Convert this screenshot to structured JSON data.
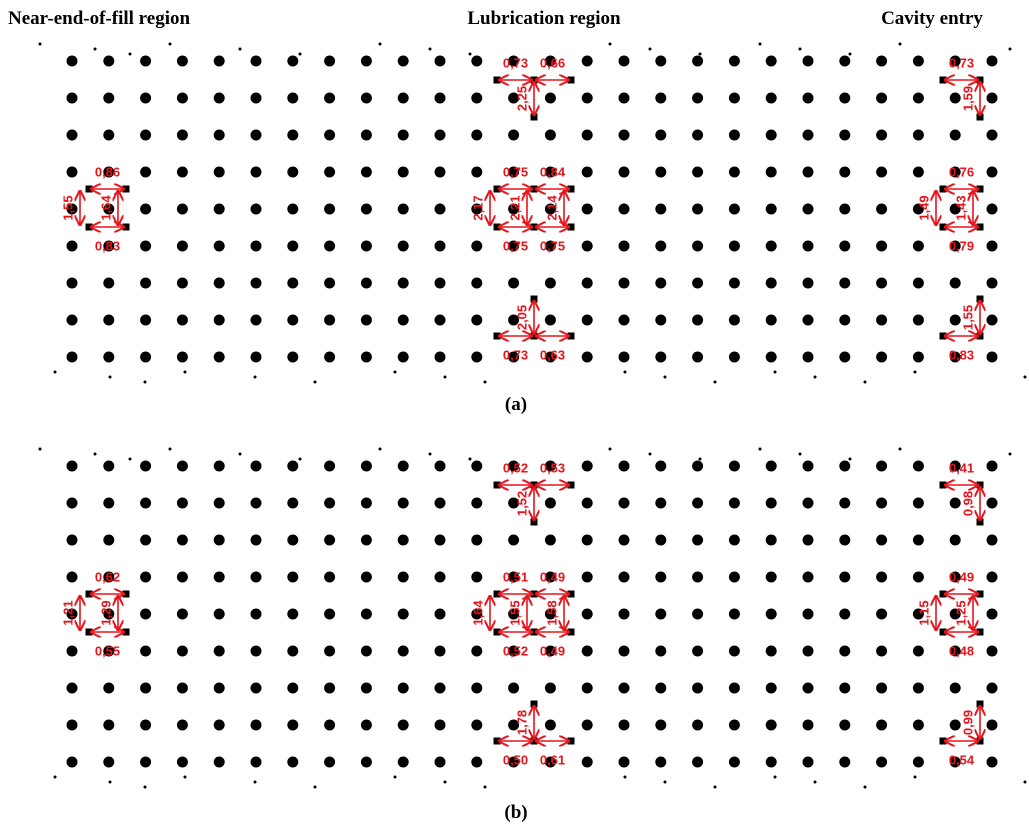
{
  "header": {
    "regions": [
      "Near-end-of-fill region",
      "Lubrication region",
      "Cavity entry"
    ]
  },
  "panels": [
    {
      "caption": "(a)",
      "measurements": [
        "0,86",
        "0,83",
        "1,55",
        "1,64",
        "0,73",
        "0,66",
        "2,25",
        "0,75",
        "0,84",
        "0,75",
        "0,75",
        "2,17",
        "2,21",
        "2,14",
        "2,05",
        "0,73",
        "0,63",
        "0,73",
        "1,59",
        "0,76",
        "0,79",
        "1,49",
        "1,43",
        "1,55",
        "0,83"
      ]
    },
    {
      "caption": "(b)",
      "measurements": [
        "0,62",
        "0,55",
        "1,21",
        "1,29",
        "0,52",
        "0,53",
        "1,52",
        "0,51",
        "0,49",
        "0,52",
        "0,49",
        "1,64",
        "1,55",
        "1,58",
        "1,78",
        "0,50",
        "0,61",
        "0,41",
        "0,98",
        "0,49",
        "0,48",
        "1,15",
        "1,25",
        "0,99",
        "0,54"
      ]
    }
  ]
}
